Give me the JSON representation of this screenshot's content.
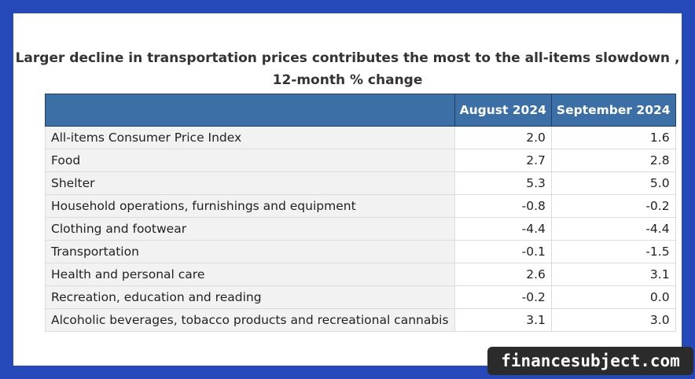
{
  "chart_data": {
    "type": "table",
    "title": "Larger decline in transportation prices contributes the most to the all-items slowdown , 12-month % change",
    "columns": [
      "",
      "August 2024",
      "September 2024"
    ],
    "rows": [
      {
        "label": "All-items Consumer Price Index",
        "values": [
          "2.0",
          "1.6"
        ]
      },
      {
        "label": "Food",
        "values": [
          "2.7",
          "2.8"
        ]
      },
      {
        "label": "Shelter",
        "values": [
          "5.3",
          "5.0"
        ]
      },
      {
        "label": "Household operations, furnishings and equipment",
        "values": [
          "-0.8",
          "-0.2"
        ]
      },
      {
        "label": "Clothing and footwear",
        "values": [
          "-4.4",
          "-4.4"
        ]
      },
      {
        "label": "Transportation",
        "values": [
          "-0.1",
          "-1.5"
        ]
      },
      {
        "label": "Health and personal care",
        "values": [
          "2.6",
          "3.1"
        ]
      },
      {
        "label": "Recreation, education and reading",
        "values": [
          "-0.2",
          "0.0"
        ]
      },
      {
        "label": "Alcoholic beverages, tobacco products and recreational cannabis",
        "values": [
          "3.1",
          "3.0"
        ]
      }
    ]
  },
  "watermark": "financesubject.com",
  "colors": {
    "background": "#2549b8",
    "header": "#3b6fa5",
    "label_cell": "#f2f2f2"
  }
}
